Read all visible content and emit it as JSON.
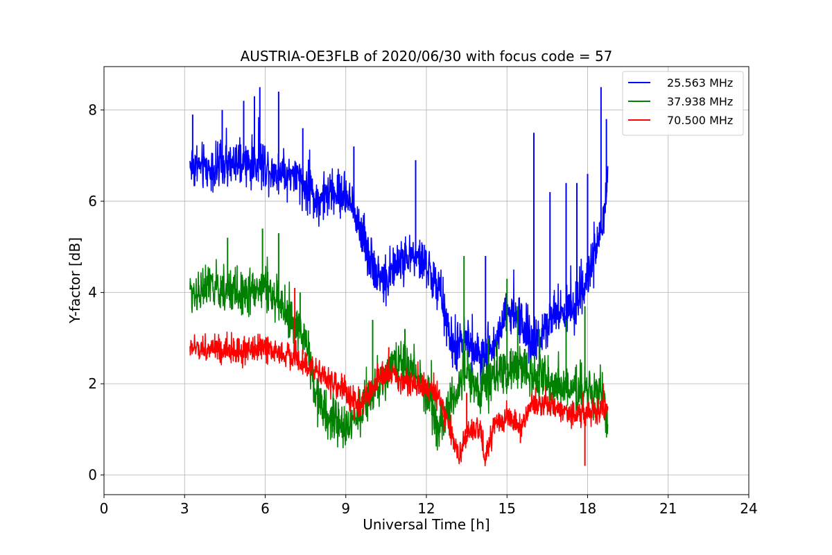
{
  "chart_data": {
    "type": "line",
    "title": "AUSTRIA-OE3FLB of 2020/06/30 with focus code = 57",
    "xlabel": "Universal Time [h]",
    "ylabel": "Y-factor [dB]",
    "xlim": [
      0,
      24
    ],
    "ylim": [
      -0.43,
      8.95
    ],
    "xticks": [
      0,
      3,
      6,
      9,
      12,
      15,
      18,
      21,
      24
    ],
    "yticks": [
      0,
      2,
      4,
      6,
      8
    ],
    "grid": true,
    "legend_position": "top-right",
    "x_range_data": [
      3.2,
      18.75
    ],
    "series": [
      {
        "name": "25.563 MHz",
        "color": "#0000ff",
        "x": [
          3.2,
          4.0,
          5.0,
          6.0,
          6.5,
          7.0,
          7.5,
          8.0,
          8.5,
          9.0,
          9.5,
          10.0,
          10.4,
          11.0,
          11.5,
          12.0,
          12.5,
          13.0,
          13.5,
          14.0,
          14.5,
          15.0,
          15.5,
          16.0,
          16.5,
          17.0,
          17.5,
          18.0,
          18.5,
          18.75
        ],
        "values": [
          6.8,
          6.7,
          6.8,
          6.8,
          6.6,
          6.6,
          6.3,
          6.0,
          6.2,
          6.1,
          5.5,
          4.6,
          4.2,
          4.7,
          4.8,
          4.6,
          4.0,
          2.7,
          3.0,
          2.5,
          2.8,
          3.6,
          3.4,
          2.8,
          3.4,
          3.6,
          3.6,
          4.3,
          5.3,
          6.3
        ],
        "noise": 0.35,
        "spikes": [
          [
            3.3,
            7.9
          ],
          [
            4.4,
            8.0
          ],
          [
            5.2,
            8.2
          ],
          [
            5.6,
            8.3
          ],
          [
            5.8,
            8.5
          ],
          [
            6.5,
            8.4
          ],
          [
            7.4,
            7.6
          ],
          [
            9.3,
            7.2
          ],
          [
            11.6,
            6.9
          ],
          [
            14.2,
            4.8
          ],
          [
            16.0,
            7.5
          ],
          [
            16.6,
            6.2
          ],
          [
            17.2,
            6.4
          ],
          [
            17.6,
            6.4
          ],
          [
            18.0,
            6.6
          ],
          [
            18.5,
            8.5
          ],
          [
            18.7,
            7.8
          ]
        ]
      },
      {
        "name": "37.938 MHz",
        "color": "#008000",
        "x": [
          3.2,
          4.0,
          5.0,
          6.0,
          6.5,
          7.0,
          7.5,
          8.0,
          8.5,
          9.0,
          9.5,
          10.0,
          10.5,
          11.0,
          11.5,
          12.0,
          12.5,
          13.0,
          13.5,
          14.0,
          14.5,
          15.0,
          15.5,
          16.0,
          16.5,
          17.0,
          17.5,
          18.0,
          18.5,
          18.75
        ],
        "values": [
          4.0,
          4.1,
          4.0,
          4.1,
          3.8,
          3.3,
          3.0,
          1.5,
          1.2,
          1.0,
          1.4,
          1.8,
          2.2,
          2.5,
          2.3,
          1.8,
          1.0,
          1.6,
          2.3,
          1.8,
          2.1,
          2.3,
          2.4,
          2.2,
          2.1,
          1.9,
          1.8,
          1.8,
          1.9,
          1.0
        ],
        "noise": 0.35,
        "spikes": [
          [
            4.6,
            5.2
          ],
          [
            5.9,
            5.4
          ],
          [
            6.5,
            5.3
          ],
          [
            7.3,
            4.0
          ],
          [
            10.0,
            3.4
          ],
          [
            11.2,
            3.2
          ],
          [
            13.4,
            4.8
          ],
          [
            14.3,
            3.0
          ],
          [
            15.0,
            4.3
          ],
          [
            15.4,
            3.7
          ],
          [
            16.2,
            3.2
          ],
          [
            17.2,
            3.4
          ],
          [
            17.9,
            3.7
          ]
        ]
      },
      {
        "name": "70.500 MHz",
        "color": "#ff0000",
        "x": [
          3.2,
          4.0,
          5.0,
          6.0,
          6.5,
          7.0,
          7.5,
          8.0,
          8.5,
          9.0,
          9.5,
          10.0,
          10.5,
          11.0,
          11.5,
          12.0,
          12.5,
          13.0,
          13.2,
          13.5,
          14.0,
          14.2,
          14.5,
          15.0,
          15.5,
          16.0,
          16.5,
          17.0,
          17.5,
          18.0,
          18.5,
          18.75
        ],
        "values": [
          2.8,
          2.75,
          2.7,
          2.8,
          2.7,
          2.6,
          2.4,
          2.3,
          2.0,
          1.8,
          1.5,
          1.9,
          2.3,
          2.1,
          2.0,
          1.9,
          1.6,
          0.8,
          0.3,
          0.9,
          1.0,
          0.3,
          1.1,
          1.3,
          1.0,
          1.6,
          1.5,
          1.4,
          1.3,
          1.4,
          1.4,
          1.5
        ],
        "noise": 0.2,
        "spikes": [
          [
            7.1,
            4.1
          ],
          [
            9.3,
            1.2
          ],
          [
            10.6,
            2.8
          ],
          [
            13.5,
            1.8
          ],
          [
            15.5,
            0.7
          ],
          [
            17.9,
            0.2
          ]
        ]
      }
    ]
  }
}
